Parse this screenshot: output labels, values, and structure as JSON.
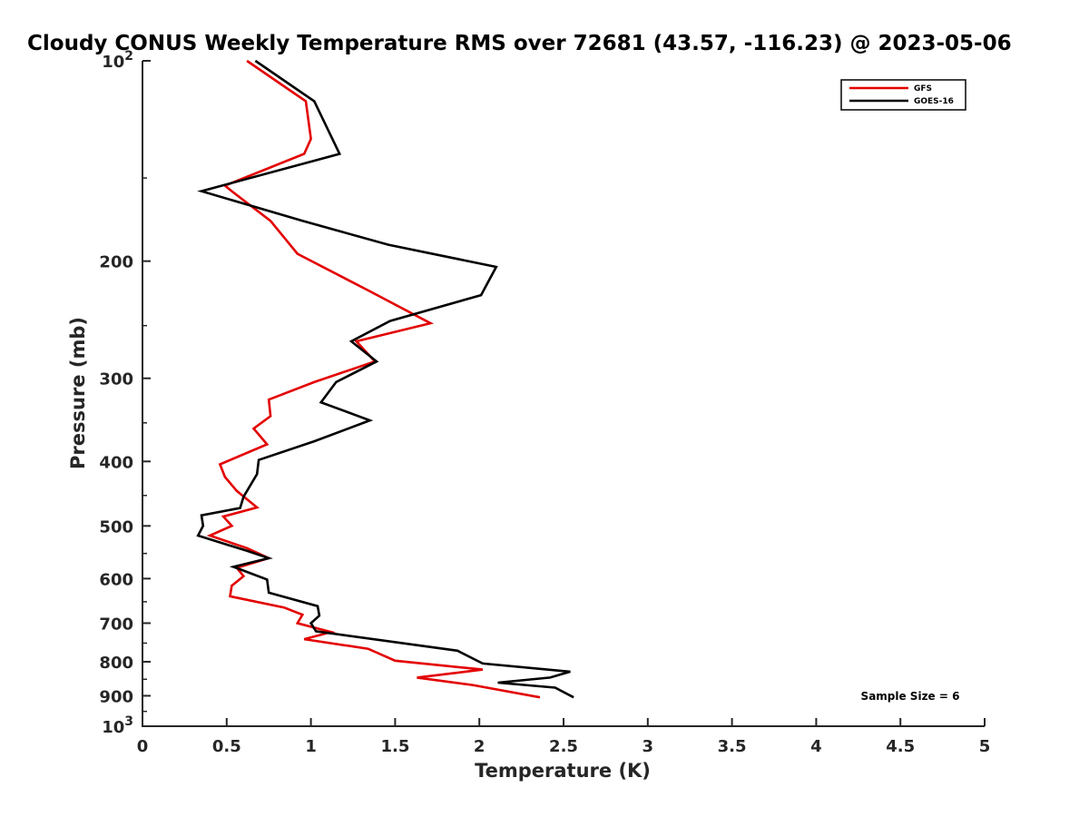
{
  "chart_data": {
    "type": "line",
    "title": "Cloudy CONUS Weekly Temperature RMS over 72681 (43.57, -116.23) @ 2023-05-06",
    "xlabel": "Temperature (K)",
    "ylabel": "Pressure (mb)",
    "xlim": [
      0,
      5
    ],
    "ylim": [
      100,
      1000
    ],
    "y_scale": "log",
    "y_reversed": true,
    "grid": false,
    "legend_position": "top-right",
    "x_ticks": [
      "0",
      "0.5",
      "1",
      "1.5",
      "2",
      "2.5",
      "3",
      "3.5",
      "4",
      "4.5",
      "5"
    ],
    "y_ticks": [
      {
        "value": 100,
        "base": "10",
        "exp": "2"
      },
      {
        "value": 200,
        "label": "200"
      },
      {
        "value": 300,
        "label": "300"
      },
      {
        "value": 400,
        "label": "400"
      },
      {
        "value": 500,
        "label": "500"
      },
      {
        "value": 600,
        "label": "600"
      },
      {
        "value": 700,
        "label": "700"
      },
      {
        "value": 800,
        "label": "800"
      },
      {
        "value": 900,
        "label": "900"
      },
      {
        "value": 1000,
        "base": "10",
        "exp": "3"
      }
    ],
    "annotation": "Sample Size = 6",
    "series": [
      {
        "name": "GFS",
        "color": "#e30000",
        "points": [
          [
            0.62,
            100
          ],
          [
            0.97,
            115
          ],
          [
            1.0,
            131
          ],
          [
            0.96,
            138
          ],
          [
            0.49,
            154
          ],
          [
            0.53,
            157
          ],
          [
            0.76,
            174
          ],
          [
            0.92,
            195
          ],
          [
            1.35,
            222
          ],
          [
            1.71,
            248
          ],
          [
            1.27,
            264
          ],
          [
            1.38,
            283
          ],
          [
            1.02,
            304
          ],
          [
            0.75,
            323
          ],
          [
            0.76,
            342
          ],
          [
            0.66,
            357
          ],
          [
            0.74,
            377
          ],
          [
            0.46,
            404
          ],
          [
            0.49,
            422
          ],
          [
            0.56,
            443
          ],
          [
            0.68,
            469
          ],
          [
            0.48,
            484
          ],
          [
            0.53,
            500
          ],
          [
            0.4,
            517
          ],
          [
            0.62,
            540
          ],
          [
            0.75,
            559
          ],
          [
            0.56,
            578
          ],
          [
            0.6,
            595
          ],
          [
            0.53,
            615
          ],
          [
            0.52,
            638
          ],
          [
            0.84,
            663
          ],
          [
            0.95,
            680
          ],
          [
            0.92,
            700
          ],
          [
            1.12,
            722
          ],
          [
            0.96,
            740
          ],
          [
            1.34,
            765
          ],
          [
            1.5,
            797
          ],
          [
            2.02,
            822
          ],
          [
            1.63,
            845
          ],
          [
            1.96,
            867
          ],
          [
            2.36,
            905
          ]
        ]
      },
      {
        "name": "GOES-16",
        "color": "#000000",
        "points": [
          [
            0.67,
            100
          ],
          [
            1.02,
            115
          ],
          [
            1.17,
            138
          ],
          [
            0.35,
            157
          ],
          [
            0.95,
            174
          ],
          [
            1.46,
            189
          ],
          [
            2.1,
            204
          ],
          [
            2.01,
            225
          ],
          [
            1.47,
            246
          ],
          [
            1.24,
            264
          ],
          [
            1.39,
            283
          ],
          [
            1.15,
            304
          ],
          [
            1.06,
            326
          ],
          [
            1.35,
            347
          ],
          [
            1.02,
            373
          ],
          [
            0.69,
            398
          ],
          [
            0.68,
            418
          ],
          [
            0.6,
            452
          ],
          [
            0.58,
            470
          ],
          [
            0.35,
            482
          ],
          [
            0.36,
            500
          ],
          [
            0.33,
            517
          ],
          [
            0.62,
            545
          ],
          [
            0.75,
            559
          ],
          [
            0.54,
            576
          ],
          [
            0.74,
            602
          ],
          [
            0.75,
            630
          ],
          [
            1.04,
            660
          ],
          [
            1.05,
            682
          ],
          [
            1.0,
            700
          ],
          [
            1.03,
            720
          ],
          [
            1.87,
            770
          ],
          [
            2.02,
            805
          ],
          [
            2.54,
            828
          ],
          [
            2.42,
            845
          ],
          [
            2.11,
            860
          ],
          [
            2.45,
            875
          ],
          [
            2.56,
            905
          ]
        ]
      }
    ]
  }
}
